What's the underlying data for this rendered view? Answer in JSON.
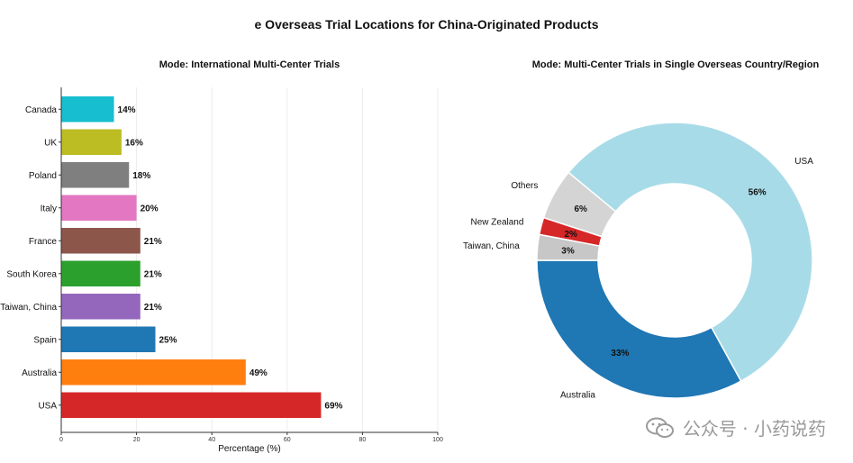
{
  "title": "e  Overseas Trial Locations for China-Originated Products",
  "watermark": "公众号 · 小药说药",
  "chart_data": [
    {
      "type": "bar",
      "orientation": "horizontal",
      "title": "Mode: International Multi-Center Trials",
      "xlabel": "Percentage (%)",
      "ylabel": "",
      "xlim": [
        0,
        100
      ],
      "xticks": [
        0,
        20,
        40,
        60,
        80,
        100
      ],
      "grid": "vertical",
      "categories": [
        "Canada",
        "UK",
        "Poland",
        "Italy",
        "France",
        "South Korea",
        "Taiwan, China",
        "Spain",
        "Australia",
        "USA"
      ],
      "values": [
        14,
        16,
        18,
        20,
        21,
        21,
        21,
        25,
        49,
        69
      ],
      "value_labels": [
        "14%",
        "16%",
        "18%",
        "20%",
        "21%",
        "21%",
        "21%",
        "25%",
        "49%",
        "69%"
      ],
      "colors": [
        "#17becf",
        "#bcbd22",
        "#7f7f7f",
        "#e377c2",
        "#8c564b",
        "#2ca02c",
        "#9467bd",
        "#1f77b4",
        "#ff7f0e",
        "#d62728"
      ]
    },
    {
      "type": "pie",
      "style": "donut",
      "title": "Mode: Multi-Center Trials in Single Overseas Country/Region",
      "start_angle_deg": 180,
      "direction": "clockwise",
      "labels": [
        "Australia",
        "USA",
        "Others",
        "New Zealand",
        "Taiwan, China"
      ],
      "values": [
        33,
        56,
        6,
        2,
        3
      ],
      "value_labels": [
        "33%",
        "56%",
        "6%",
        "2%",
        "3%"
      ],
      "colors": [
        "#1f77b4",
        "#a8dbe8",
        "#d4d4d4",
        "#d62728",
        "#c7c7c7"
      ]
    }
  ]
}
